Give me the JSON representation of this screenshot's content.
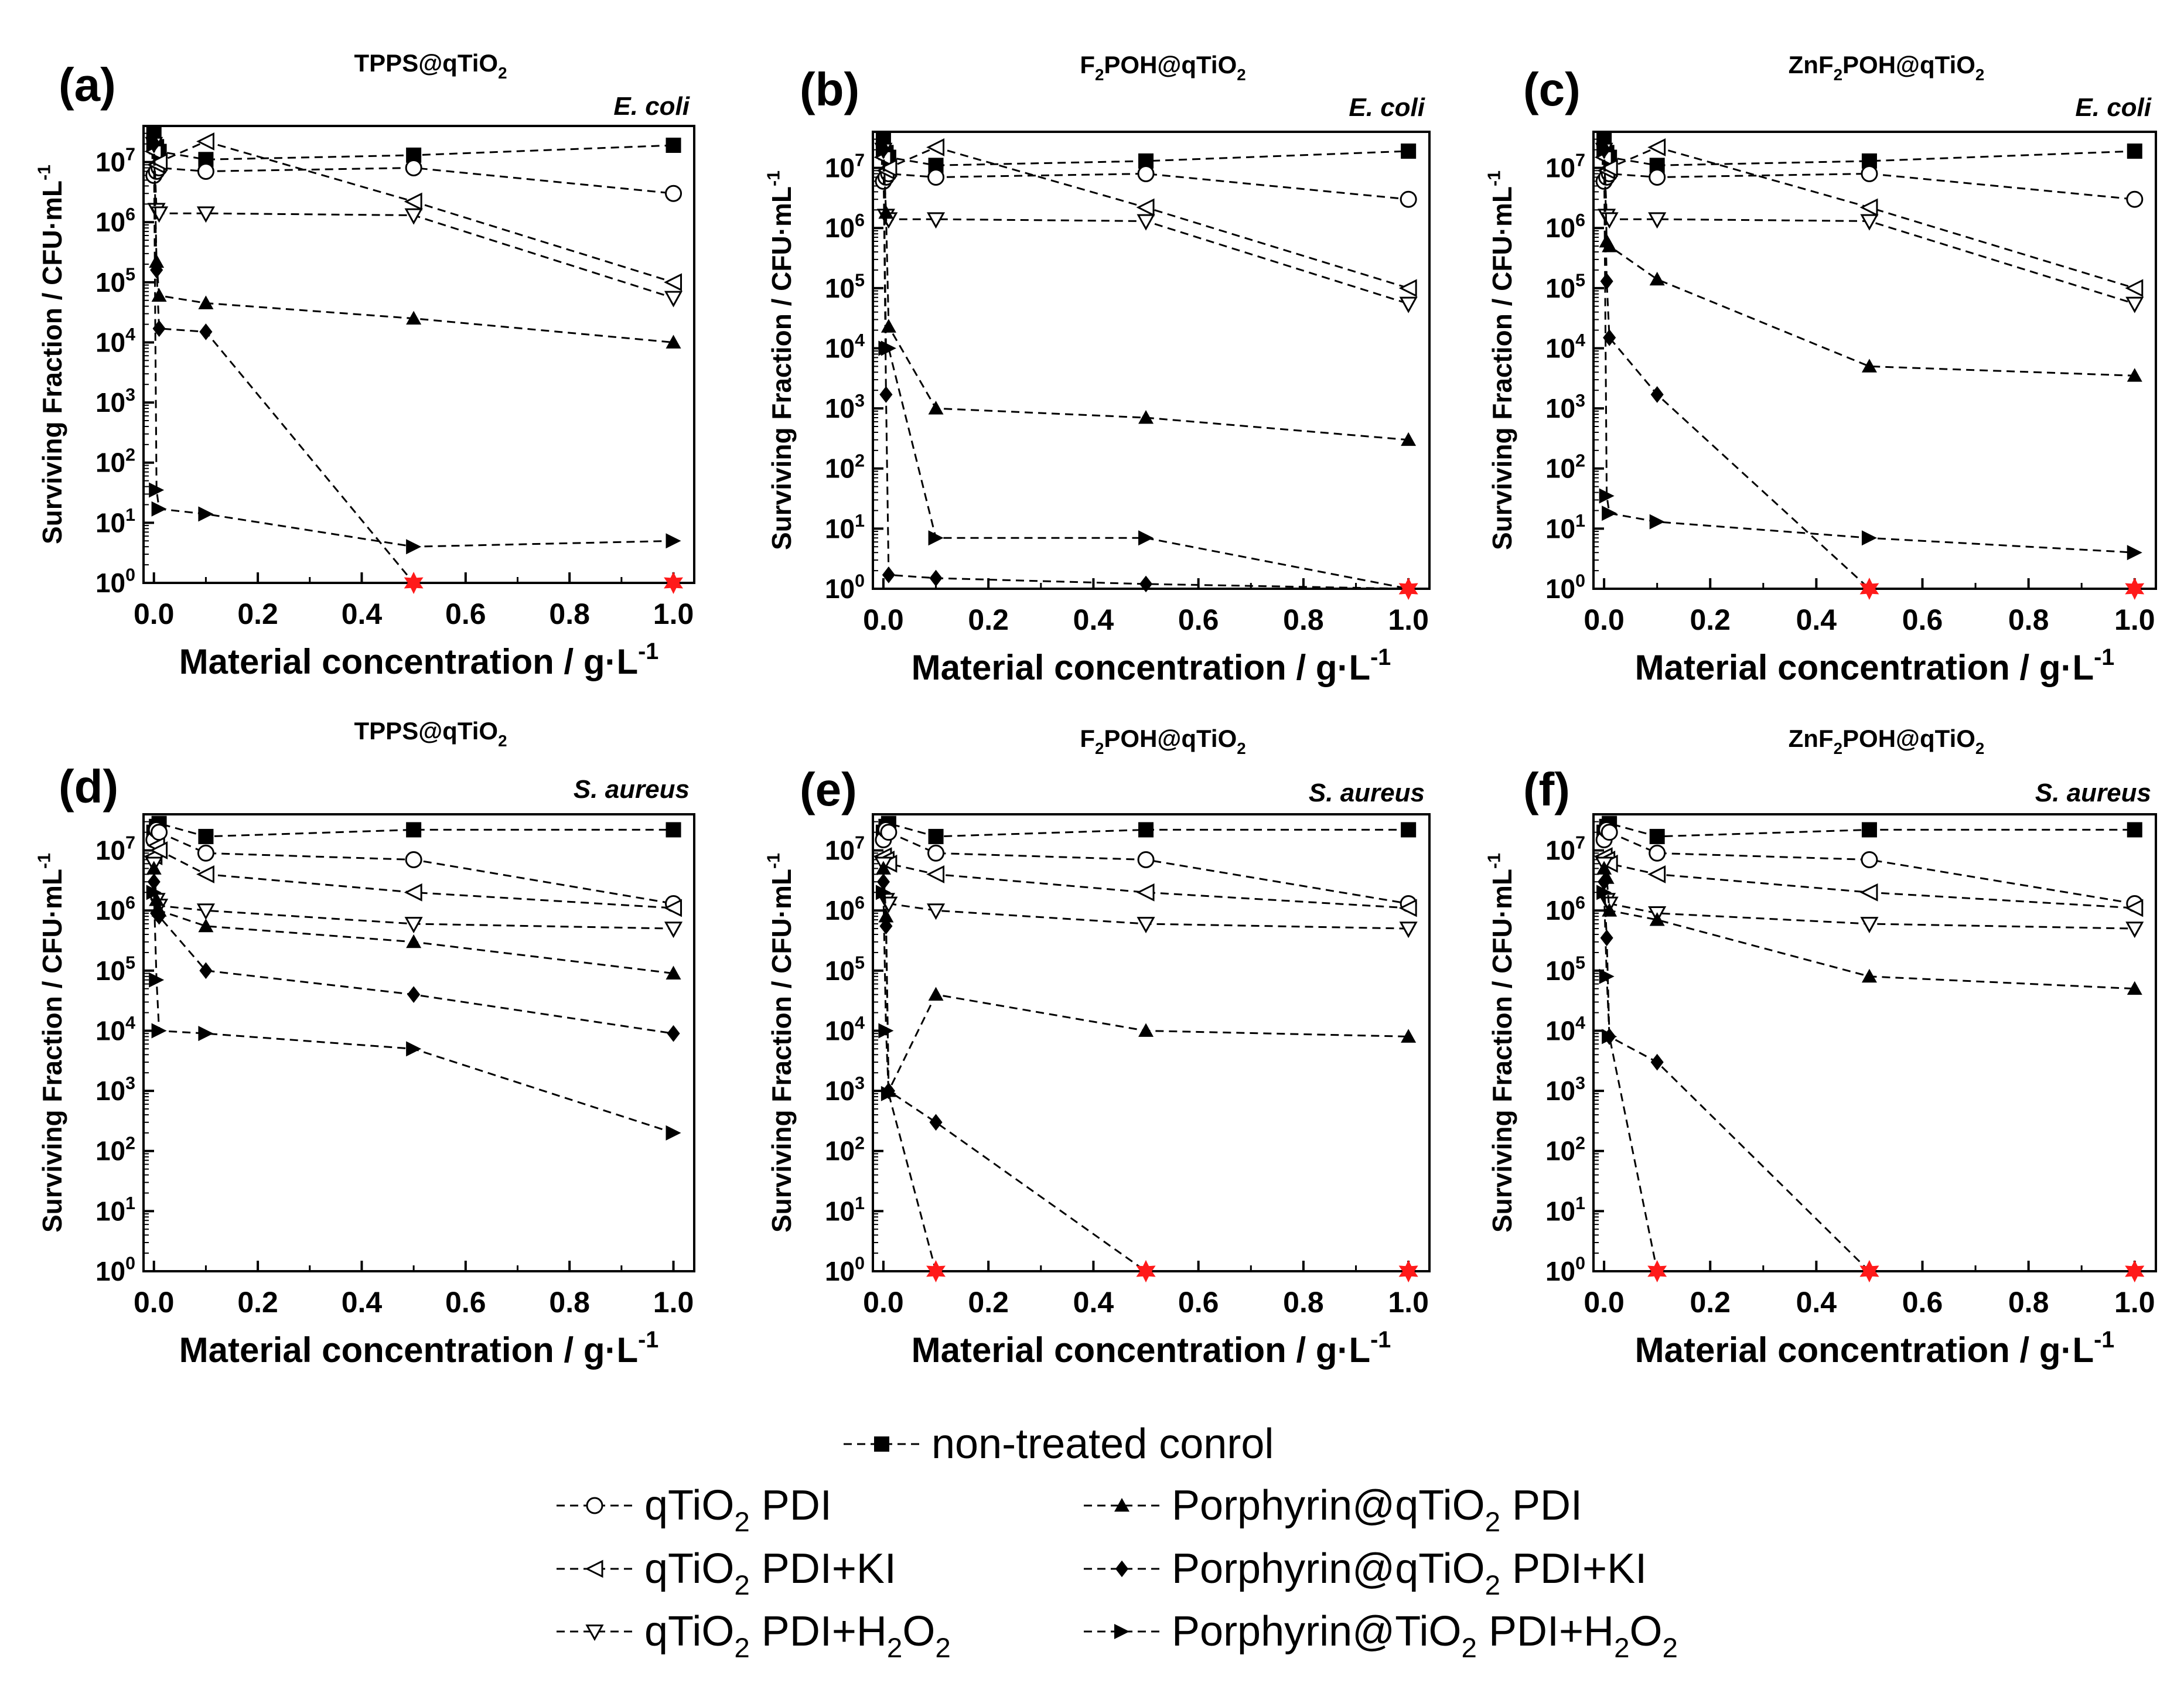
{
  "legend": {
    "entries": [
      {
        "key": "control",
        "label": "non-treated conrol"
      },
      {
        "key": "qTiO2_PDI",
        "label": "qTiO2 PDI"
      },
      {
        "key": "qTiO2_PDI_KI",
        "label": "qTiO2 PDI+KI"
      },
      {
        "key": "qTiO2_PDI_H2O2",
        "label": "qTiO2 PDI+H2O2"
      },
      {
        "key": "Por_PDI",
        "label": "Porphyrin@qTiO2 PDI"
      },
      {
        "key": "Por_PDI_KI",
        "label": "Porphyrin@qTiO2 PDI+KI"
      },
      {
        "key": "Por_PDI_H2O2",
        "label": "Porphyrin@TiO2 PDI+H2O2"
      }
    ]
  },
  "chart_data": [
    {
      "type": "scatter",
      "panel": "(a)",
      "title": "TPPS@qTiO2",
      "organism": "E. coli",
      "xlabel": "Material concentration / g·L-1",
      "ylabel": "Surviving Fraction / CFU·mL-1",
      "xlim": [
        -0.02,
        1.04
      ],
      "ylim_log10": [
        0,
        7.6
      ],
      "xticks": [
        "0.0",
        "0.2",
        "0.4",
        "0.6",
        "0.8",
        "1.0"
      ],
      "yticks": [
        "100",
        "101",
        "102",
        "103",
        "104",
        "105",
        "106",
        "107"
      ],
      "zero_survival_marker": "red star",
      "series": [
        {
          "key": "control",
          "x": [
            0,
            0.005,
            0.01,
            0.1,
            0.5,
            1.0
          ],
          "y": [
            30000000,
            18000000,
            15000000,
            11000000,
            13000000,
            19000000
          ]
        },
        {
          "key": "qTiO2_PDI",
          "x": [
            0,
            0.005,
            0.01,
            0.1,
            0.5,
            1.0
          ],
          "y": [
            6000000,
            7000000,
            8000000,
            7000000,
            8000000,
            3000000
          ]
        },
        {
          "key": "qTiO2_PDI_KI",
          "x": [
            0,
            0.005,
            0.01,
            0.1,
            0.5,
            1.0
          ],
          "y": [
            15000000,
            9000000,
            10000000,
            22000000,
            2200000,
            100000
          ]
        },
        {
          "key": "qTiO2_PDI_H2O2",
          "x": [
            0,
            0.005,
            0.01,
            0.1,
            0.5,
            1.0
          ],
          "y": [
            20000000,
            1600000,
            1400000,
            1400000,
            1300000,
            55000
          ]
        },
        {
          "key": "Por_PDI",
          "x": [
            0,
            0.005,
            0.01,
            0.1,
            0.5,
            1.0
          ],
          "y": [
            23000000,
            220000,
            60000,
            45000,
            25000,
            10000
          ]
        },
        {
          "key": "Por_PDI_KI",
          "x": [
            0,
            0.005,
            0.01,
            0.1,
            0.5,
            1.0
          ],
          "y": [
            20000000,
            160000,
            17000,
            15000,
            1,
            1
          ]
        },
        {
          "key": "Por_PDI_H2O2",
          "x": [
            0,
            0.005,
            0.01,
            0.1,
            0.5,
            1.0
          ],
          "y": [
            20000000,
            35,
            17,
            14,
            4,
            5
          ]
        }
      ]
    },
    {
      "type": "scatter",
      "panel": "(b)",
      "title": "F2POH@qTiO2",
      "organism": "E. coli",
      "xlabel": "Material concentration / g·L-1",
      "ylabel": "Surviving Fraction / CFU·mL-1",
      "xlim": [
        -0.02,
        1.04
      ],
      "ylim_log10": [
        0,
        7.6
      ],
      "xticks": [
        "0.0",
        "0.2",
        "0.4",
        "0.6",
        "0.8",
        "1.0"
      ],
      "yticks": [
        "100",
        "101",
        "102",
        "103",
        "104",
        "105",
        "106",
        "107"
      ],
      "zero_survival_marker": "red star",
      "series": [
        {
          "key": "control",
          "x": [
            0,
            0.005,
            0.01,
            0.1,
            0.5,
            1.0
          ],
          "y": [
            30000000,
            18000000,
            15000000,
            11000000,
            13000000,
            19000000
          ]
        },
        {
          "key": "qTiO2_PDI",
          "x": [
            0,
            0.005,
            0.01,
            0.1,
            0.5,
            1.0
          ],
          "y": [
            6000000,
            7000000,
            8000000,
            7000000,
            8000000,
            3000000
          ]
        },
        {
          "key": "qTiO2_PDI_KI",
          "x": [
            0,
            0.005,
            0.01,
            0.1,
            0.5,
            1.0
          ],
          "y": [
            15000000,
            9000000,
            10000000,
            22000000,
            2200000,
            100000
          ]
        },
        {
          "key": "qTiO2_PDI_H2O2",
          "x": [
            0,
            0.005,
            0.01,
            0.1,
            0.5,
            1.0
          ],
          "y": [
            20000000,
            1600000,
            1400000,
            1400000,
            1300000,
            55000
          ]
        },
        {
          "key": "Por_PDI",
          "x": [
            0,
            0.005,
            0.01,
            0.1,
            0.5,
            1.0
          ],
          "y": [
            23000000,
            1800000,
            23000,
            1000,
            700,
            300
          ]
        },
        {
          "key": "Por_PDI_KI",
          "x": [
            0,
            0.005,
            0.01,
            0.1,
            0.5,
            1.0
          ],
          "y": [
            20000000,
            1700,
            1.7,
            1.5,
            1.2,
            1
          ]
        },
        {
          "key": "Por_PDI_H2O2",
          "x": [
            0,
            0.005,
            0.01,
            0.1,
            0.5,
            1.0
          ],
          "y": [
            20000000,
            10000,
            10000,
            7,
            7,
            1
          ]
        }
      ]
    },
    {
      "type": "scatter",
      "panel": "(c)",
      "title": "ZnF2POH@qTiO2",
      "organism": "E. coli",
      "xlabel": "Material concentration / g·L-1",
      "ylabel": "Surviving Fraction / CFU·mL-1",
      "xlim": [
        -0.02,
        1.04
      ],
      "ylim_log10": [
        0,
        7.6
      ],
      "xticks": [
        "0.0",
        "0.2",
        "0.4",
        "0.6",
        "0.8",
        "1.0"
      ],
      "yticks": [
        "100",
        "101",
        "102",
        "103",
        "104",
        "105",
        "106",
        "107"
      ],
      "zero_survival_marker": "red star",
      "series": [
        {
          "key": "control",
          "x": [
            0,
            0.005,
            0.01,
            0.1,
            0.5,
            1.0
          ],
          "y": [
            30000000,
            18000000,
            15000000,
            11000000,
            13000000,
            19000000
          ]
        },
        {
          "key": "qTiO2_PDI",
          "x": [
            0,
            0.005,
            0.01,
            0.1,
            0.5,
            1.0
          ],
          "y": [
            6000000,
            7000000,
            8000000,
            7000000,
            8000000,
            3000000
          ]
        },
        {
          "key": "qTiO2_PDI_KI",
          "x": [
            0,
            0.005,
            0.01,
            0.1,
            0.5,
            1.0
          ],
          "y": [
            15000000,
            9000000,
            10000000,
            22000000,
            2200000,
            100000
          ]
        },
        {
          "key": "qTiO2_PDI_H2O2",
          "x": [
            0,
            0.005,
            0.01,
            0.1,
            0.5,
            1.0
          ],
          "y": [
            20000000,
            1600000,
            1400000,
            1400000,
            1300000,
            55000
          ]
        },
        {
          "key": "Por_PDI",
          "x": [
            0,
            0.005,
            0.01,
            0.1,
            0.5,
            1.0
          ],
          "y": [
            23000000,
            600000,
            500000,
            140000,
            5000,
            3500
          ]
        },
        {
          "key": "Por_PDI_KI",
          "x": [
            0,
            0.005,
            0.01,
            0.1,
            0.5,
            1.0
          ],
          "y": [
            20000000,
            130000,
            15000,
            1700,
            1,
            1
          ]
        },
        {
          "key": "Por_PDI_H2O2",
          "x": [
            0,
            0.005,
            0.01,
            0.1,
            0.5,
            1.0
          ],
          "y": [
            20000000,
            35,
            18,
            13,
            7,
            4
          ]
        }
      ]
    },
    {
      "type": "scatter",
      "panel": "(d)",
      "title": "TPPS@qTiO2",
      "organism": "S. aureus",
      "xlabel": "Material concentration / g·L-1",
      "ylabel": "Surviving Fraction / CFU·mL-1",
      "xlim": [
        -0.02,
        1.04
      ],
      "ylim_log10": [
        0,
        7.6
      ],
      "xticks": [
        "0.0",
        "0.2",
        "0.4",
        "0.6",
        "0.8",
        "1.0"
      ],
      "yticks": [
        "100",
        "101",
        "102",
        "103",
        "104",
        "105",
        "106",
        "107"
      ],
      "zero_survival_marker": "red star",
      "series": [
        {
          "key": "control",
          "x": [
            0,
            0.005,
            0.01,
            0.1,
            0.5,
            1.0
          ],
          "y": [
            20000000,
            25000000,
            28000000,
            17000000,
            22000000,
            22000000
          ]
        },
        {
          "key": "qTiO2_PDI",
          "x": [
            0,
            0.005,
            0.01,
            0.1,
            0.5,
            1.0
          ],
          "y": [
            15000000,
            22000000,
            20000000,
            9000000,
            7000000,
            1300000
          ]
        },
        {
          "key": "qTiO2_PDI_KI",
          "x": [
            0,
            0.005,
            0.01,
            0.1,
            0.5,
            1.0
          ],
          "y": [
            8000000,
            12000000,
            10000000,
            4000000,
            2000000,
            1100000
          ]
        },
        {
          "key": "qTiO2_PDI_H2O2",
          "x": [
            0,
            0.005,
            0.01,
            0.1,
            0.5,
            1.0
          ],
          "y": [
            6000000,
            1500000,
            1200000,
            1000000,
            600000,
            500000
          ]
        },
        {
          "key": "Por_PDI",
          "x": [
            0,
            0.005,
            0.01,
            0.1,
            0.5,
            1.0
          ],
          "y": [
            5000000,
            1500000,
            1000000,
            550000,
            300000,
            90000
          ]
        },
        {
          "key": "Por_PDI_KI",
          "x": [
            0,
            0.005,
            0.01,
            0.1,
            0.5,
            1.0
          ],
          "y": [
            3000000,
            900000,
            800000,
            100000,
            40000,
            9000
          ]
        },
        {
          "key": "Por_PDI_H2O2",
          "x": [
            0,
            0.005,
            0.01,
            0.1,
            0.5,
            1.0
          ],
          "y": [
            2000000,
            70000,
            10000,
            9000,
            5000,
            200
          ]
        }
      ]
    },
    {
      "type": "scatter",
      "panel": "(e)",
      "title": "F2POH@qTiO2",
      "organism": "S. aureus",
      "xlabel": "Material concentration / g·L-1",
      "ylabel": "Surviving Fraction / CFU·mL-1",
      "xlim": [
        -0.02,
        1.04
      ],
      "ylim_log10": [
        0,
        7.6
      ],
      "xticks": [
        "0.0",
        "0.2",
        "0.4",
        "0.6",
        "0.8",
        "1.0"
      ],
      "yticks": [
        "100",
        "101",
        "102",
        "103",
        "104",
        "105",
        "106",
        "107"
      ],
      "zero_survival_marker": "red star",
      "series": [
        {
          "key": "control",
          "x": [
            0,
            0.005,
            0.01,
            0.1,
            0.5,
            1.0
          ],
          "y": [
            20000000,
            25000000,
            28000000,
            17000000,
            22000000,
            22000000
          ]
        },
        {
          "key": "qTiO2_PDI",
          "x": [
            0,
            0.005,
            0.01,
            0.1,
            0.5,
            1.0
          ],
          "y": [
            15000000,
            22000000,
            20000000,
            9000000,
            7000000,
            1300000
          ]
        },
        {
          "key": "qTiO2_PDI_KI",
          "x": [
            0,
            0.005,
            0.01,
            0.1,
            0.5,
            1.0
          ],
          "y": [
            8000000,
            7000000,
            6000000,
            4000000,
            2000000,
            1100000
          ]
        },
        {
          "key": "qTiO2_PDI_H2O2",
          "x": [
            0,
            0.005,
            0.01,
            0.1,
            0.5,
            1.0
          ],
          "y": [
            6000000,
            1500000,
            1300000,
            1000000,
            600000,
            500000
          ]
        },
        {
          "key": "Por_PDI",
          "x": [
            0,
            0.005,
            0.01,
            0.1,
            0.5,
            1.0
          ],
          "y": [
            5000000,
            800000,
            1000,
            40000,
            10000,
            8000
          ]
        },
        {
          "key": "Por_PDI_KI",
          "x": [
            0,
            0.005,
            0.01,
            0.1,
            0.5,
            1.0
          ],
          "y": [
            3000000,
            550000,
            1000,
            300,
            1,
            1
          ]
        },
        {
          "key": "Por_PDI_H2O2",
          "x": [
            0,
            0.005,
            0.01,
            0.1,
            0.5,
            1.0
          ],
          "y": [
            2000000,
            10000,
            900,
            1,
            1,
            1
          ]
        }
      ]
    },
    {
      "type": "scatter",
      "panel": "(f)",
      "title": "ZnF2POH@qTiO2",
      "organism": "S. aureus",
      "xlabel": "Material concentration / g·L-1",
      "ylabel": "Surviving Fraction / CFU·mL-1",
      "xlim": [
        -0.02,
        1.04
      ],
      "ylim_log10": [
        0,
        7.6
      ],
      "xticks": [
        "0.0",
        "0.2",
        "0.4",
        "0.6",
        "0.8",
        "1.0"
      ],
      "yticks": [
        "100",
        "101",
        "102",
        "103",
        "104",
        "105",
        "106",
        "107"
      ],
      "zero_survival_marker": "red star",
      "series": [
        {
          "key": "control",
          "x": [
            0,
            0.005,
            0.01,
            0.1,
            0.5,
            1.0
          ],
          "y": [
            20000000,
            25000000,
            28000000,
            17000000,
            22000000,
            22000000
          ]
        },
        {
          "key": "qTiO2_PDI",
          "x": [
            0,
            0.005,
            0.01,
            0.1,
            0.5,
            1.0
          ],
          "y": [
            15000000,
            22000000,
            20000000,
            9000000,
            7000000,
            1300000
          ]
        },
        {
          "key": "qTiO2_PDI_KI",
          "x": [
            0,
            0.005,
            0.01,
            0.1,
            0.5,
            1.0
          ],
          "y": [
            8000000,
            7000000,
            6000000,
            4000000,
            2000000,
            1100000
          ]
        },
        {
          "key": "qTiO2_PDI_H2O2",
          "x": [
            0,
            0.005,
            0.01,
            0.1,
            0.5,
            1.0
          ],
          "y": [
            6000000,
            1500000,
            1300000,
            900000,
            600000,
            500000
          ]
        },
        {
          "key": "Por_PDI",
          "x": [
            0,
            0.005,
            0.01,
            0.1,
            0.5,
            1.0
          ],
          "y": [
            5000000,
            3500000,
            1000000,
            700000,
            80000,
            50000
          ]
        },
        {
          "key": "Por_PDI_KI",
          "x": [
            0,
            0.005,
            0.01,
            0.1,
            0.5,
            1.0
          ],
          "y": [
            3000000,
            350000,
            8000,
            3000,
            1,
            1
          ]
        },
        {
          "key": "Por_PDI_H2O2",
          "x": [
            0,
            0.005,
            0.01,
            0.1,
            0.5,
            1.0
          ],
          "y": [
            2000000,
            80000,
            8000,
            1,
            1,
            1
          ]
        }
      ]
    }
  ]
}
